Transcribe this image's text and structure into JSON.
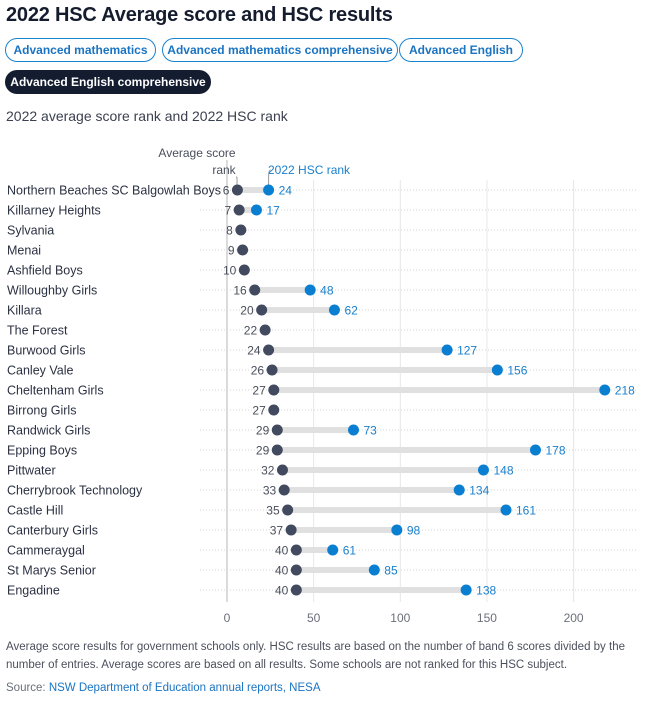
{
  "header": {
    "title": "2022 HSC Average score and HSC results"
  },
  "tabs": [
    {
      "label": "Advanced mathematics",
      "active": false
    },
    {
      "label": "Advanced mathematics comprehensive",
      "active": false
    },
    {
      "label": "Advanced English",
      "active": false
    },
    {
      "label": "Advanced English comprehensive",
      "active": true
    }
  ],
  "colors": {
    "avg_dot": "#414a5e",
    "hsc_dot": "#0a7fd1",
    "connector": "#e0e0e0",
    "active_tab": "#141c30",
    "accent": "#1a74c2"
  },
  "chart_data": {
    "type": "dumbbell",
    "title": "2022 average score rank and 2022 HSC rank",
    "xlabel": "",
    "ylabel": "",
    "xlim": [
      0,
      235
    ],
    "xticks": [
      0,
      50,
      100,
      150,
      200
    ],
    "grid": true,
    "legend": {
      "avg_label": "Average score rank",
      "hsc_label": "2022 HSC rank",
      "placement": "top-left"
    },
    "series": [
      {
        "name": "Average score rank",
        "key": "avg"
      },
      {
        "name": "2022 HSC rank",
        "key": "hsc"
      }
    ],
    "rows": [
      {
        "school": "Northern Beaches SC Balgowlah Boys",
        "avg": 6,
        "hsc": 24
      },
      {
        "school": "Killarney Heights",
        "avg": 7,
        "hsc": 17
      },
      {
        "school": "Sylvania",
        "avg": 8,
        "hsc": null
      },
      {
        "school": "Menai",
        "avg": 9,
        "hsc": null
      },
      {
        "school": "Ashfield Boys",
        "avg": 10,
        "hsc": null
      },
      {
        "school": "Willoughby Girls",
        "avg": 16,
        "hsc": 48
      },
      {
        "school": "Killara",
        "avg": 20,
        "hsc": 62
      },
      {
        "school": "The Forest",
        "avg": 22,
        "hsc": null
      },
      {
        "school": "Burwood Girls",
        "avg": 24,
        "hsc": 127
      },
      {
        "school": "Canley Vale",
        "avg": 26,
        "hsc": 156
      },
      {
        "school": "Cheltenham Girls",
        "avg": 27,
        "hsc": 218
      },
      {
        "school": "Birrong Girls",
        "avg": 27,
        "hsc": null
      },
      {
        "school": "Randwick Girls",
        "avg": 29,
        "hsc": 73
      },
      {
        "school": "Epping Boys",
        "avg": 29,
        "hsc": 178
      },
      {
        "school": "Pittwater",
        "avg": 32,
        "hsc": 148
      },
      {
        "school": "Cherrybrook Technology",
        "avg": 33,
        "hsc": 134
      },
      {
        "school": "Castle Hill",
        "avg": 35,
        "hsc": 161
      },
      {
        "school": "Canterbury Girls",
        "avg": 37,
        "hsc": 98
      },
      {
        "school": "Cammeraygal",
        "avg": 40,
        "hsc": 61
      },
      {
        "school": "St Marys Senior",
        "avg": 40,
        "hsc": 85
      },
      {
        "school": "Engadine",
        "avg": 40,
        "hsc": 138
      }
    ]
  },
  "footer": {
    "note": "Average score results for government schools only. HSC results are based on the number of band 6 scores divided by the number of entries. Average scores are based on all results. Some schools are not ranked for this HSC subject.",
    "source_prefix": "Source: ",
    "source_link": "NSW Department of Education annual reports, NESA"
  }
}
